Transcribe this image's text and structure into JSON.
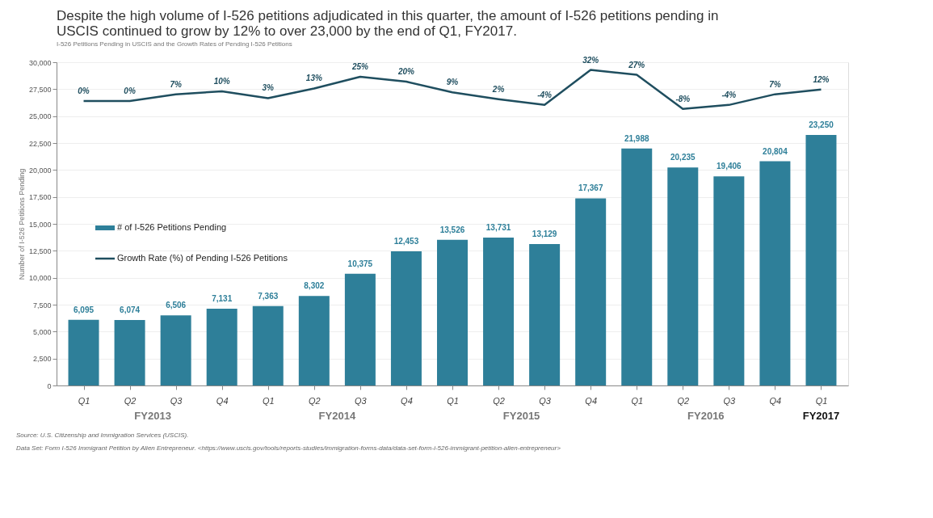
{
  "chart_data": {
    "type": "bar",
    "title": "Despite the high volume of I-526 petitions adjudicated in this quarter, the amount of I-526 petitions pending in USCIS continued to grow by 12% to over 23,000 by the end of Q1, FY2017.",
    "subtitle": "I-526 Petitions Pending in USCIS and the Growth Rates of Pending I-526 Petitions",
    "ylabel": "Number of I-526 Petitions Pending",
    "categories": [
      "Q1",
      "Q2",
      "Q3",
      "Q4",
      "Q1",
      "Q2",
      "Q3",
      "Q4",
      "Q1",
      "Q2",
      "Q3",
      "Q4",
      "Q1",
      "Q2",
      "Q3",
      "Q4",
      "Q1"
    ],
    "series": [
      {
        "name": "# of I-526 Petitions Pending",
        "color": "#2e7f99",
        "values": [
          6095,
          6074,
          6506,
          7131,
          7363,
          8302,
          10375,
          12453,
          13526,
          13731,
          13129,
          17367,
          21988,
          20235,
          19406,
          20804,
          23250
        ],
        "value_labels": [
          "6,095",
          "6,074",
          "6,506",
          "7,131",
          "7,363",
          "8,302",
          "10,375",
          "12,453",
          "13,526",
          "13,731",
          "13,129",
          "17,367",
          "21,988",
          "20,235",
          "19,406",
          "20,804",
          "23,250"
        ]
      },
      {
        "name": "Growth Rate (%) of Pending I-526 Petitions",
        "type": "line",
        "axis": "y2",
        "color": "#1f4e5f",
        "values": [
          0,
          0,
          7,
          10,
          3,
          13,
          25,
          20,
          9,
          2,
          -4,
          32,
          27,
          -8,
          -4,
          7,
          12
        ],
        "value_labels": [
          "0%",
          "0%",
          "7%",
          "10%",
          "3%",
          "13%",
          "25%",
          "20%",
          "9%",
          "2%",
          "-4%",
          "32%",
          "27%",
          "-8%",
          "-4%",
          "7%",
          "12%"
        ]
      }
    ],
    "ylim": [
      0,
      30000
    ],
    "yticks": [
      0,
      {
        "value": 2500,
        "label": "2,500"
      },
      {
        "value": 5000,
        "label": "5,000"
      },
      {
        "value": 7500,
        "label": "7,500"
      },
      {
        "value": 10000,
        "label": "10,000"
      },
      {
        "value": 12500,
        "label": "12,500"
      },
      {
        "value": 15000,
        "label": "15,000"
      },
      {
        "value": 17500,
        "label": "17,500"
      },
      {
        "value": 20000,
        "label": "20,000"
      },
      {
        "value": 22500,
        "label": "22,500"
      },
      {
        "value": 25000,
        "label": "25,000"
      },
      {
        "value": 27500,
        "label": "27,500"
      },
      {
        "value": 30000,
        "label": "30,000"
      }
    ],
    "y2lim": [
      -293,
      40
    ],
    "grid": "y",
    "legend": "left",
    "annotations": [
      "FY2013",
      "FY2014",
      "FY2015",
      "FY2016",
      "FY2017",
      "Source: U.S. Citizenship and Immigration Services (USCIS).",
      "Data Set: Form I-526 Immigrant Petition by Alien Entrepreneur. <https://www.uscis.gov/tools/reports-studies/immigration-forms-data/data-set-form-i-526-immigrant-petition-alien-entrepreneur>"
    ]
  }
}
